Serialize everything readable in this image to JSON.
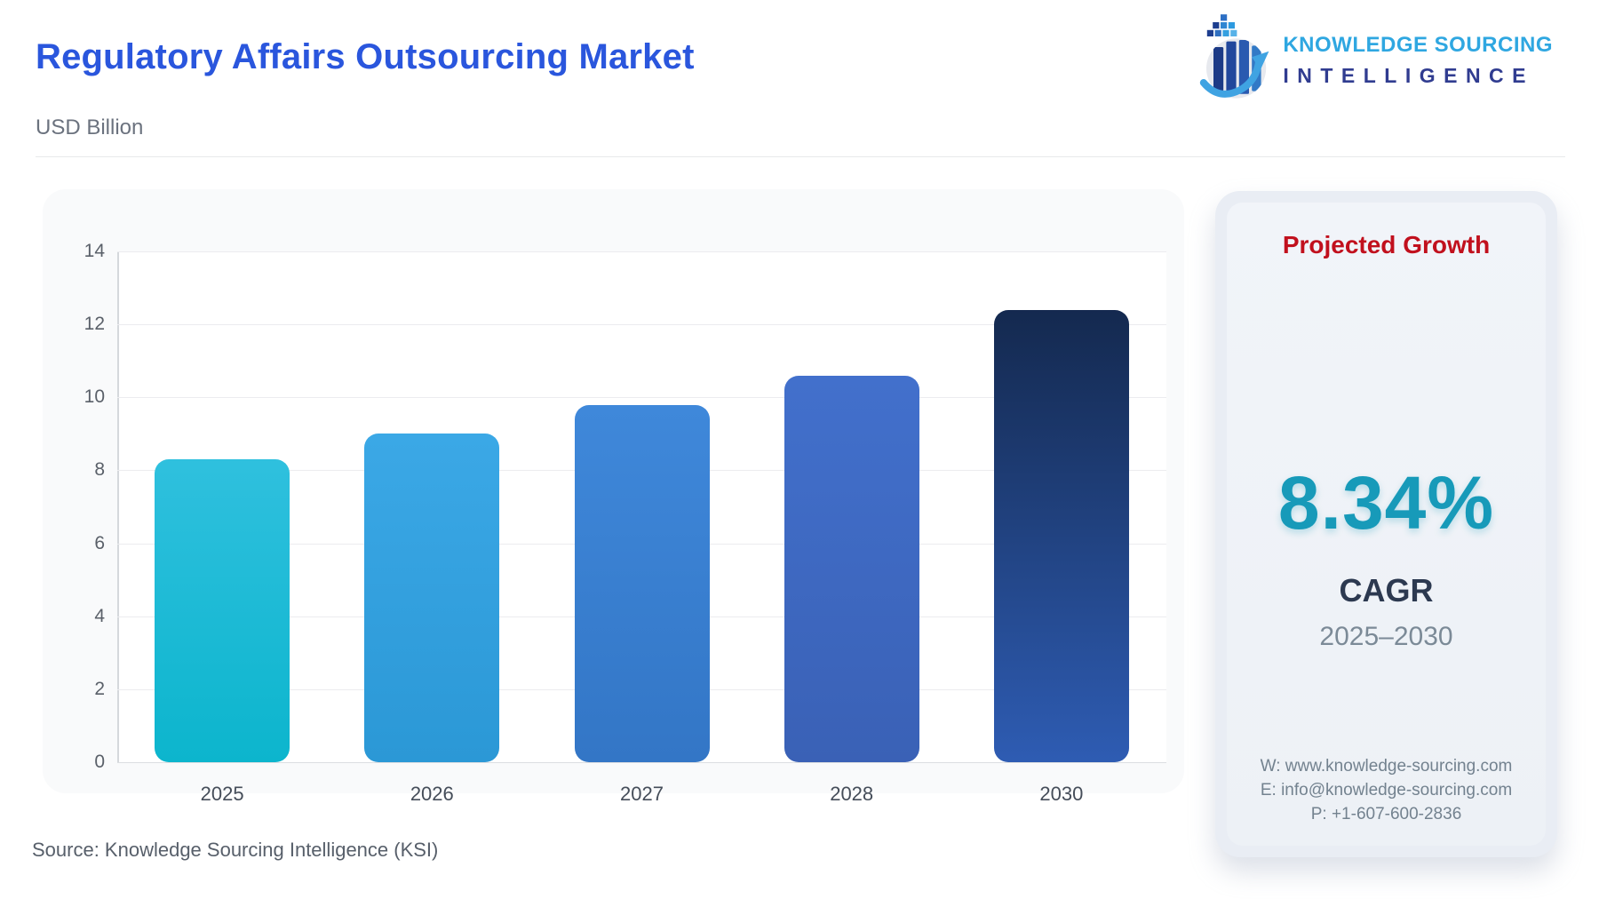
{
  "header": {
    "title": "Regulatory Affairs Outsourcing Market",
    "unit": "USD Billion",
    "brand": {
      "line1": "KNOWLEDGE SOURCING",
      "line2": "INTELLIGENCE"
    }
  },
  "chart_data": {
    "type": "bar",
    "title": "Regulatory Affairs Outsourcing Market",
    "ylabel": "USD Billion",
    "xlabel": "",
    "categories": [
      "2025",
      "2026",
      "2027",
      "2028",
      "2030"
    ],
    "values": [
      8.3,
      9.0,
      9.8,
      10.6,
      12.4
    ],
    "ylim": [
      0,
      14
    ],
    "yticks": [
      0,
      2,
      4,
      6,
      8,
      10,
      12,
      14
    ],
    "grid": true,
    "legend_position": "none",
    "bar_gradients": [
      [
        "#2fc0de",
        "#0cb5cd"
      ],
      [
        "#3ba8e6",
        "#2b98d6"
      ],
      [
        "#3f88da",
        "#3376c6"
      ],
      [
        "#4270cc",
        "#3a61b6"
      ],
      [
        "#14294f",
        "#2e5cb3"
      ]
    ]
  },
  "panel": {
    "title": "Projected Growth",
    "value": "8.34%",
    "label": "CAGR",
    "period": "2025–2030",
    "contact": {
      "website": "W: www.knowledge-sourcing.com",
      "email": "E: info@knowledge-sourcing.com",
      "phone": "P: +1-607-600-2836"
    }
  },
  "footer": {
    "source": "Source: Knowledge Sourcing Intelligence (KSI)"
  },
  "colors": {
    "title_blue": "#2a56dd",
    "brand_cyan": "#2fa7e1",
    "brand_navy": "#303c90",
    "panel_red": "#c1101d",
    "cagr_teal": "#179ab9",
    "cagr_navy": "#2c3950",
    "grid": "#ececef",
    "card_bg": "#f9fafb",
    "panel_bg": "#e9edf4"
  }
}
